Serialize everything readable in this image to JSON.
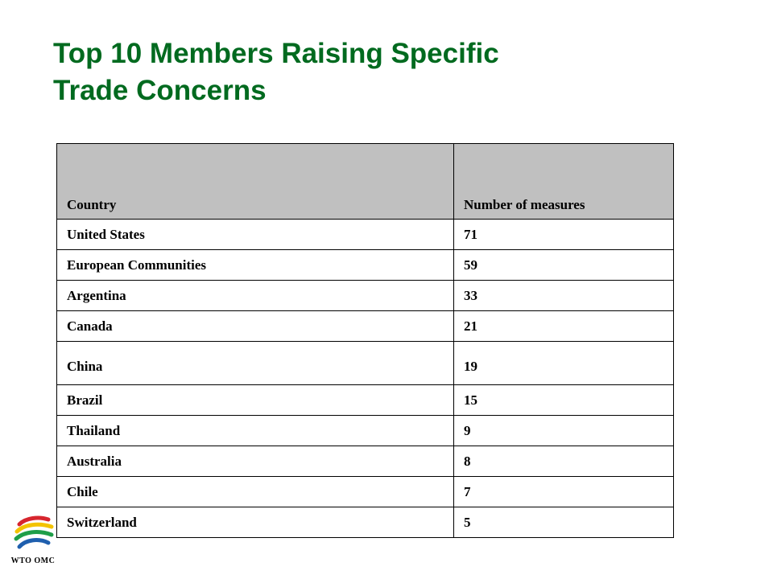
{
  "title": {
    "line1": "Top 10 Members Raising Specific",
    "line2": "Trade Concerns"
  },
  "table": {
    "headers": [
      "Country",
      "Number of measures"
    ],
    "rows": [
      [
        "United States",
        "71"
      ],
      [
        "European Communities",
        "59"
      ],
      [
        "Argentina",
        "33"
      ],
      [
        "Canada",
        "21"
      ],
      [
        "China",
        "19"
      ],
      [
        "Brazil",
        "15"
      ],
      [
        "Thailand",
        "9"
      ],
      [
        "Australia",
        "8"
      ],
      [
        "Chile",
        "7"
      ],
      [
        "Switzerland",
        "5"
      ]
    ]
  },
  "logo": {
    "text": "WTO OMC",
    "colors": [
      "#d7262e",
      "#f3c300",
      "#1e9e48",
      "#1f5fae"
    ]
  }
}
